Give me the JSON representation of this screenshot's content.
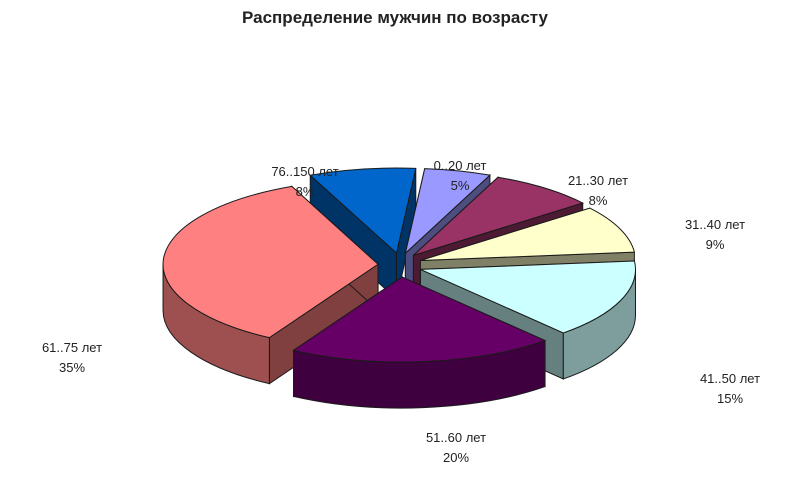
{
  "chart_data": {
    "type": "pie",
    "title": "Распределение мужчин по возрасту",
    "slices": [
      {
        "label": "0..20 лет",
        "value": 5,
        "value_label": "5%",
        "color": "#9999FF"
      },
      {
        "label": "21..30 лет",
        "value": 8,
        "value_label": "8%",
        "color": "#993366"
      },
      {
        "label": "31..40 лет",
        "value": 9,
        "value_label": "9%",
        "color": "#FFFFCC"
      },
      {
        "label": "41..50 лет",
        "value": 15,
        "value_label": "15%",
        "color": "#CCFFFF"
      },
      {
        "label": "51..60 лет",
        "value": 20,
        "value_label": "20%",
        "color": "#660066"
      },
      {
        "label": "61..75 лет",
        "value": 35,
        "value_label": "35%",
        "color": "#FF8080"
      },
      {
        "label": "76..150 лет",
        "value": 8,
        "value_label": "8%",
        "color": "#0066CC"
      }
    ],
    "style": "3d-exploded",
    "legend": "none"
  }
}
